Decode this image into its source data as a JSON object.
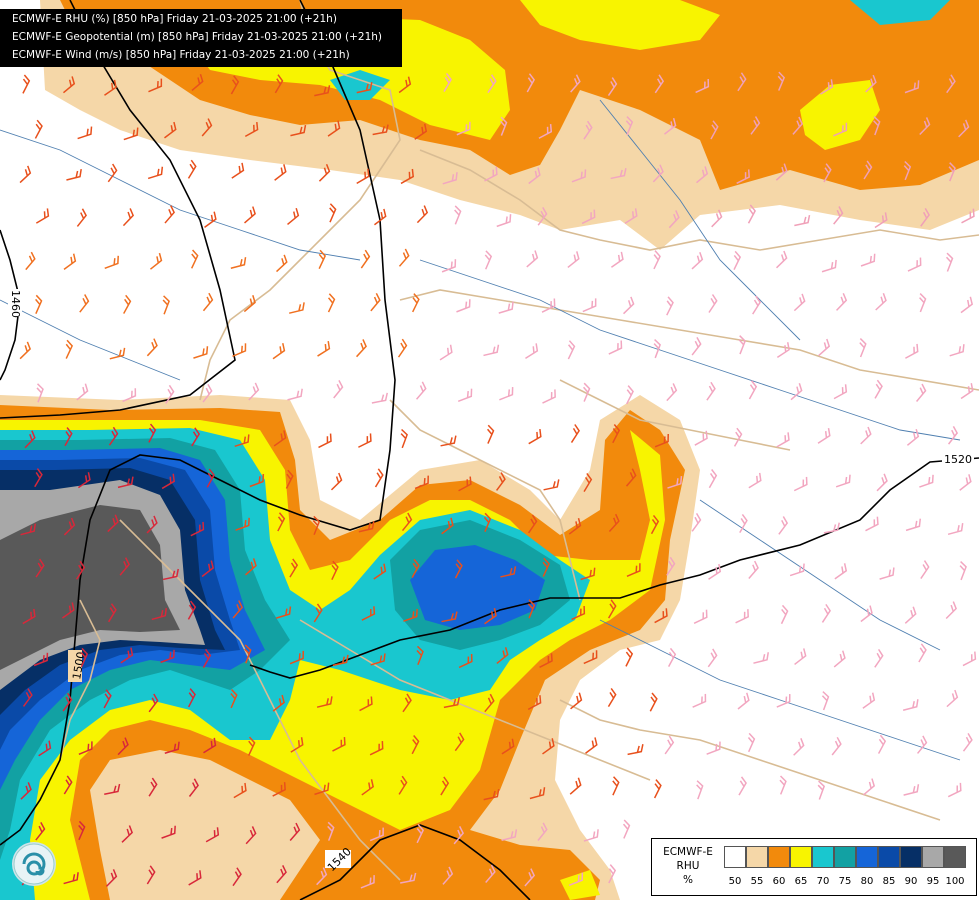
{
  "header": {
    "lines": [
      "ECMWF-E RHU (%) [850 hPa] Friday 21-03-2025 21:00 (+21h)",
      "ECMWF-E Geopotential (m) [850 hPa] Friday 21-03-2025 21:00 (+21h)",
      "ECMWF-E Wind (m/s) [850 hPa] Friday 21-03-2025 21:00 (+21h)"
    ]
  },
  "legend": {
    "title_lines": [
      "ECMWF-E",
      "RHU",
      "%"
    ],
    "levels": [
      "50",
      "55",
      "60",
      "65",
      "70",
      "75",
      "80",
      "85",
      "90",
      "95",
      "100"
    ],
    "colors": [
      "#ffffff",
      "#f5d7a8",
      "#f28a0c",
      "#f8f400",
      "#19c7cf",
      "#12a1a3",
      "#1565d8",
      "#0a4aa8",
      "#062f66",
      "#a8a8a8",
      "#595959"
    ]
  },
  "contours": {
    "labels": [
      "1460",
      "1500",
      "1520",
      "1540"
    ]
  },
  "map": {
    "rhu_colors": {
      "c55": "#f5d7a8",
      "c60": "#f28a0c",
      "c65": "#f8f400",
      "c70": "#19c7cf",
      "c75": "#12a1a3",
      "c80": "#1565d8",
      "c85": "#0a4aa8",
      "c90": "#062f66",
      "c95": "#a8a8a8",
      "c100": "#595959"
    },
    "border_color": "#d8bc94",
    "river_color": "#4f7fb0",
    "contour_color": "#000000"
  }
}
